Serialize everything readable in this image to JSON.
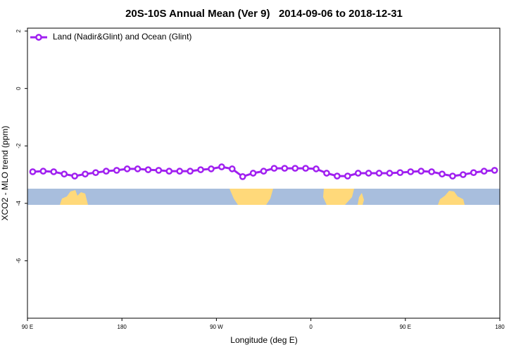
{
  "chart_data": {
    "type": "line",
    "title": "20S-10S Annual Mean (Ver 9)   2014-09-06 to 2018-12-31",
    "xlabel": "Longitude (deg E)",
    "ylabel": "XCO2 - MLO trend (ppm)",
    "x": [
      95,
      105,
      115,
      125,
      135,
      145,
      155,
      165,
      175,
      185,
      195,
      205,
      215,
      225,
      235,
      245,
      255,
      265,
      275,
      285,
      295,
      305,
      315,
      325,
      335,
      345,
      355,
      365,
      375,
      385,
      395,
      405,
      415,
      425,
      435,
      445,
      455,
      465,
      475,
      485,
      495,
      505,
      515,
      525,
      535
    ],
    "series": [
      {
        "name": "Land (Nadir&Glint) and Ocean (Glint)",
        "color": "#a020f0",
        "values": [
          -2.9,
          -2.88,
          -2.9,
          -2.98,
          -3.05,
          -2.98,
          -2.93,
          -2.88,
          -2.85,
          -2.8,
          -2.8,
          -2.83,
          -2.85,
          -2.88,
          -2.88,
          -2.88,
          -2.83,
          -2.8,
          -2.73,
          -2.8,
          -3.07,
          -2.95,
          -2.88,
          -2.78,
          -2.78,
          -2.78,
          -2.78,
          -2.8,
          -2.95,
          -3.05,
          -3.05,
          -2.95,
          -2.95,
          -2.95,
          -2.95,
          -2.93,
          -2.9,
          -2.88,
          -2.9,
          -2.98,
          -3.05,
          -3.0,
          -2.93,
          -2.88,
          -2.85
        ]
      }
    ],
    "xlim": [
      90,
      540
    ],
    "xticks": [
      {
        "value": 90,
        "label": "90 E"
      },
      180,
      {
        "value": 270,
        "label": "90 W"
      },
      {
        "value": 360,
        "label": "0"
      },
      {
        "value": 450,
        "label": "90 E"
      },
      {
        "value": 540,
        "label": "180"
      }
    ],
    "ylim": [
      -8,
      2.1
    ],
    "yticks": [
      2,
      0,
      -2,
      -4,
      -6
    ],
    "legend": "top-left"
  }
}
